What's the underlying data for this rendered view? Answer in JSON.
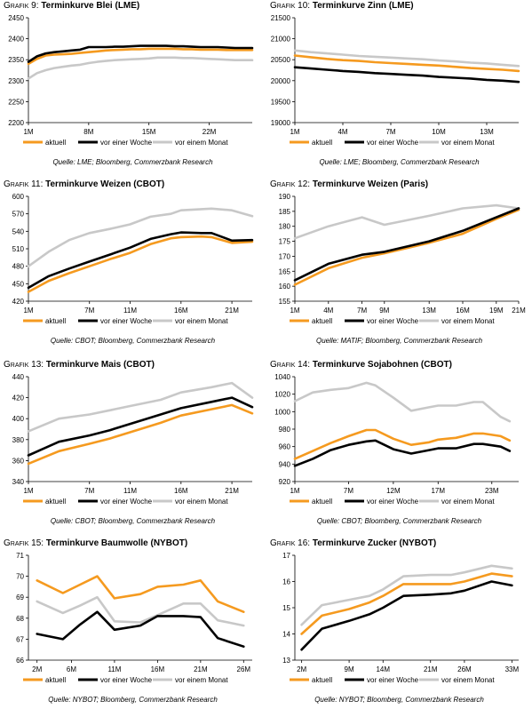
{
  "legend_labels": [
    "aktuell",
    "vor einer Woche",
    "vor einem Monat"
  ],
  "colors": {
    "aktuell": "#f59a1f",
    "woche": "#000000",
    "monat": "#c8c8c8"
  },
  "panels": [
    {
      "grafik_label": "Grafik",
      "number": "9:",
      "title": "Terminkurve Blei (LME)",
      "source": "Quelle: LME; Bloomberg, Commerzbank Research",
      "chart_data": {
        "type": "line",
        "ylim": [
          2200,
          2450
        ],
        "yticks": [
          2200,
          2250,
          2300,
          2350,
          2400,
          2450
        ],
        "x": [
          1,
          2,
          3,
          4,
          5,
          6,
          7,
          8,
          9,
          10,
          11,
          12,
          13,
          14,
          15,
          16,
          17,
          18,
          19,
          20,
          21,
          22,
          23,
          24,
          25,
          26,
          27
        ],
        "xticks": [
          1,
          8,
          15,
          22
        ],
        "xticklabels": [
          "1M",
          "8M",
          "15M",
          "22M"
        ],
        "xlim": [
          1,
          27
        ],
        "series": [
          {
            "name": "aktuell",
            "values": [
              2340,
              2352,
              2360,
              2362,
              2363,
              2364,
              2366,
              2368,
              2370,
              2372,
              2373,
              2374,
              2375,
              2375,
              2376,
              2376,
              2376,
              2376,
              2375,
              2375,
              2374,
              2374,
              2374,
              2373,
              2373,
              2373,
              2373
            ]
          },
          {
            "name": "vor einer Woche",
            "values": [
              2345,
              2358,
              2365,
              2368,
              2370,
              2372,
              2374,
              2380,
              2380,
              2380,
              2381,
              2381,
              2382,
              2383,
              2383,
              2383,
              2383,
              2382,
              2382,
              2381,
              2380,
              2380,
              2380,
              2379,
              2378,
              2378,
              2378
            ]
          },
          {
            "name": "vor einem Monat",
            "values": [
              2305,
              2318,
              2325,
              2330,
              2333,
              2336,
              2338,
              2342,
              2345,
              2347,
              2349,
              2350,
              2351,
              2352,
              2353,
              2355,
              2355,
              2355,
              2354,
              2354,
              2353,
              2352,
              2351,
              2350,
              2349,
              2349,
              2349
            ]
          }
        ]
      }
    },
    {
      "grafik_label": "Grafik",
      "number": "10:",
      "title": "Terminkurve Zinn (LME)",
      "source": "Quelle: LME; Bloomberg, Commerzbank Research",
      "chart_data": {
        "type": "line",
        "ylim": [
          19000,
          21500
        ],
        "yticks": [
          19000,
          19500,
          20000,
          20500,
          21000,
          21500
        ],
        "x": [
          1,
          2,
          3,
          4,
          5,
          6,
          7,
          8,
          9,
          10,
          11,
          12,
          13,
          14,
          15
        ],
        "xticks": [
          1,
          4,
          7,
          10,
          13
        ],
        "xticklabels": [
          "1M",
          "4M",
          "7M",
          "10M",
          "13M"
        ],
        "xlim": [
          1,
          15
        ],
        "series": [
          {
            "name": "aktuell",
            "values": [
              20600,
              20560,
              20520,
              20490,
              20470,
              20440,
              20420,
              20400,
              20380,
              20360,
              20330,
              20300,
              20280,
              20260,
              20230
            ]
          },
          {
            "name": "vor einer Woche",
            "values": [
              20320,
              20290,
              20260,
              20230,
              20210,
              20180,
              20160,
              20140,
              20120,
              20090,
              20070,
              20050,
              20020,
              20000,
              19970
            ]
          },
          {
            "name": "vor einem Monat",
            "values": [
              20720,
              20680,
              20650,
              20620,
              20590,
              20570,
              20550,
              20530,
              20510,
              20480,
              20460,
              20430,
              20410,
              20380,
              20350
            ]
          }
        ]
      }
    },
    {
      "grafik_label": "Grafik",
      "number": "11:",
      "title": "Terminkurve Weizen (CBOT)",
      "source": "Quelle: CBOT; Bloomberg, Commerzbank Research",
      "chart_data": {
        "type": "line",
        "ylim": [
          420,
          600
        ],
        "yticks": [
          420,
          450,
          480,
          510,
          540,
          570,
          600
        ],
        "x": [
          1,
          3,
          5,
          7,
          9,
          11,
          13,
          15,
          16,
          18,
          19,
          21,
          23
        ],
        "xticks": [
          1,
          7,
          11,
          16,
          21
        ],
        "xticklabels": [
          "1M",
          "7M",
          "11M",
          "16M",
          "21M"
        ],
        "xlim": [
          1,
          23
        ],
        "series": [
          {
            "name": "aktuell",
            "values": [
              436,
              455,
              468,
              480,
              492,
              503,
              518,
              528,
              530,
              531,
              530,
              520,
              522
            ]
          },
          {
            "name": "vor einer Woche",
            "values": [
              443,
              463,
              476,
              488,
              500,
              512,
              527,
              535,
              538,
              537,
              537,
              524,
              525
            ]
          },
          {
            "name": "vor einem Monat",
            "values": [
              480,
              505,
              525,
              537,
              544,
              552,
              565,
              570,
              576,
              578,
              579,
              576,
              566
            ]
          }
        ]
      }
    },
    {
      "grafik_label": "Grafik",
      "number": "12:",
      "title": "Terminkurve Weizen (Paris)",
      "source": "Quelle: MATIF; Bloomberg, Commerzbank Research",
      "chart_data": {
        "type": "line",
        "ylim": [
          155,
          190
        ],
        "yticks": [
          155,
          160,
          165,
          170,
          175,
          180,
          185,
          190
        ],
        "x": [
          1,
          4,
          7,
          9,
          13,
          16,
          19,
          21
        ],
        "xticks": [
          1,
          4,
          7,
          9,
          13,
          16,
          19,
          21
        ],
        "xticklabels": [
          "1M",
          "4M",
          "7M",
          "9M",
          "13M",
          "16M",
          "19M",
          "21M"
        ],
        "xlim": [
          1,
          21
        ],
        "series": [
          {
            "name": "aktuell",
            "values": [
              160.5,
              166,
              169.5,
              171,
              174.5,
              177.5,
              182.5,
              185.5
            ]
          },
          {
            "name": "vor einer Woche",
            "values": [
              162,
              167.5,
              170.5,
              171.5,
              175,
              178.5,
              183,
              186
            ]
          },
          {
            "name": "vor einem Monat",
            "values": [
              176,
              180,
              183,
              180.5,
              183.5,
              186,
              187,
              186
            ]
          }
        ]
      }
    },
    {
      "grafik_label": "Grafik",
      "number": "13:",
      "title": "Terminkurve Mais (CBOT)",
      "source": "Quelle: CBOT; Bloomberg, Commerzbank Research",
      "chart_data": {
        "type": "line",
        "ylim": [
          340,
          440
        ],
        "yticks": [
          340,
          360,
          380,
          400,
          420,
          440
        ],
        "x": [
          1,
          4,
          7,
          9,
          11,
          14,
          16,
          19,
          21,
          23
        ],
        "xticks": [
          1,
          7,
          11,
          16,
          21
        ],
        "xticklabels": [
          "1M",
          "7M",
          "11M",
          "16M",
          "21M"
        ],
        "xlim": [
          1,
          23
        ],
        "series": [
          {
            "name": "aktuell",
            "values": [
              357,
              369,
              376,
              381,
              387,
              396,
              403,
              409,
              413,
              405
            ]
          },
          {
            "name": "vor einer Woche",
            "values": [
              365,
              378,
              384,
              389,
              395,
              404,
              410,
              416,
              420,
              411
            ]
          },
          {
            "name": "vor einem Monat",
            "values": [
              388,
              400,
              404,
              408,
              412,
              418,
              425,
              430,
              434,
              420
            ]
          }
        ]
      }
    },
    {
      "grafik_label": "Grafik",
      "number": "14:",
      "title": "Terminkurve Sojabohnen (CBOT)",
      "source": "Quelle: CBOT; Bloomberg, Commerzbank Research",
      "chart_data": {
        "type": "line",
        "ylim": [
          920,
          1040
        ],
        "yticks": [
          920,
          940,
          960,
          980,
          1000,
          1020,
          1040
        ],
        "x": [
          1,
          3,
          5,
          7,
          9,
          10,
          12,
          14,
          16,
          17,
          19,
          21,
          22,
          24,
          25
        ],
        "xticks": [
          1,
          7,
          12,
          17,
          23
        ],
        "xticklabels": [
          "1M",
          "7M",
          "12M",
          "17M",
          "23M"
        ],
        "xlim": [
          1,
          26
        ],
        "series": [
          {
            "name": "aktuell",
            "values": [
              946,
              955,
              964,
              972,
              979,
              979,
              969,
              962,
              965,
              968,
              970,
              975,
              975,
              972,
              967
            ]
          },
          {
            "name": "vor einer Woche",
            "values": [
              938,
              946,
              956,
              962,
              966,
              967,
              957,
              952,
              956,
              958,
              958,
              963,
              963,
              960,
              955
            ]
          },
          {
            "name": "vor einem Monat",
            "values": [
              1012,
              1022,
              1025,
              1027,
              1033,
              1030,
              1016,
              1001,
              1005,
              1007,
              1007,
              1011,
              1011,
              994,
              989
            ]
          }
        ]
      }
    },
    {
      "grafik_label": "Grafik",
      "number": "15:",
      "title": "Terminkurve Baumwolle (NYBOT)",
      "source": "Quelle: NYBOT; Bloomberg, Commerzbank Research",
      "chart_data": {
        "type": "line",
        "ylim": [
          66,
          71
        ],
        "yticks": [
          66,
          67,
          68,
          69,
          70,
          71
        ],
        "x": [
          2,
          5,
          7,
          9,
          11,
          14,
          16,
          19,
          21,
          23,
          26
        ],
        "xticks": [
          2,
          6,
          11,
          16,
          21,
          26
        ],
        "xticklabels": [
          "2M",
          "6M",
          "11M",
          "16M",
          "21M",
          "26M"
        ],
        "xlim": [
          1,
          27
        ],
        "series": [
          {
            "name": "aktuell",
            "values": [
              69.8,
              69.2,
              69.6,
              70.0,
              68.95,
              69.15,
              69.5,
              69.6,
              69.8,
              68.8,
              68.3
            ]
          },
          {
            "name": "vor einer Woche",
            "values": [
              67.25,
              67.0,
              67.7,
              68.3,
              67.45,
              67.65,
              68.1,
              68.1,
              68.05,
              67.05,
              66.65
            ]
          },
          {
            "name": "vor einem Monat",
            "values": [
              68.8,
              68.25,
              68.6,
              69.0,
              67.85,
              67.8,
              68.15,
              68.7,
              68.7,
              67.9,
              67.65
            ]
          }
        ]
      }
    },
    {
      "grafik_label": "Grafik",
      "number": "16:",
      "title": "Terminkurve Zucker (NYBOT)",
      "source": "Quelle: NYBOT; Bloomberg, Commerzbank Research",
      "chart_data": {
        "type": "line",
        "ylim": [
          13,
          17
        ],
        "yticks": [
          13,
          14,
          15,
          16,
          17
        ],
        "x": [
          2,
          5,
          9,
          12,
          14,
          17,
          21,
          24,
          26,
          30,
          33
        ],
        "xticks": [
          2,
          9,
          14,
          21,
          26,
          33
        ],
        "xticklabels": [
          "2M",
          "9M",
          "14M",
          "21M",
          "26M",
          "33M"
        ],
        "xlim": [
          1,
          34
        ],
        "series": [
          {
            "name": "aktuell",
            "values": [
              14.0,
              14.7,
              14.95,
              15.2,
              15.45,
              15.9,
              15.9,
              15.9,
              16.0,
              16.3,
              16.2
            ]
          },
          {
            "name": "vor einer Woche",
            "values": [
              13.4,
              14.2,
              14.5,
              14.75,
              15.0,
              15.45,
              15.5,
              15.55,
              15.65,
              16.0,
              15.85
            ]
          },
          {
            "name": "vor einem Monat",
            "values": [
              14.35,
              15.1,
              15.3,
              15.45,
              15.7,
              16.2,
              16.25,
              16.25,
              16.35,
              16.6,
              16.5
            ]
          }
        ]
      }
    }
  ]
}
